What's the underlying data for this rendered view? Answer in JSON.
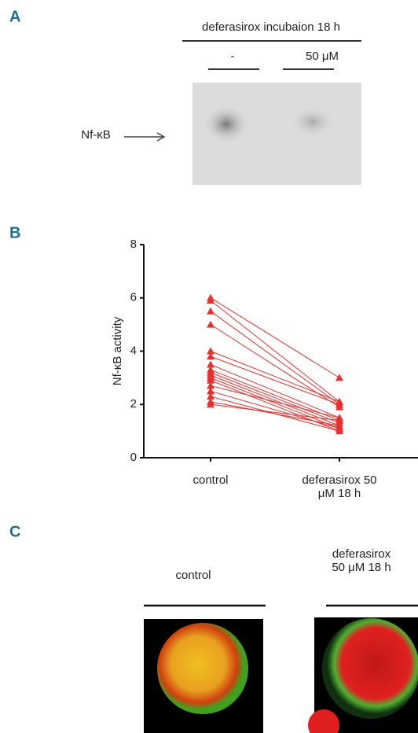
{
  "panel_labels": [
    "A",
    "B",
    "C"
  ],
  "panel_a": {
    "header": "deferasirox incubaion 18 h",
    "lanes": [
      "-",
      "50 μM"
    ],
    "band_label": "Nf-κB"
  },
  "chart_data": {
    "type": "line",
    "ylabel": "Nf-κB activity",
    "categories": [
      "control",
      "deferasirox 50 μM 18 h"
    ],
    "color": "#e8312f",
    "marker": "triangle",
    "ylim": [
      0,
      8
    ],
    "yticks": [
      0,
      2,
      4,
      6,
      8
    ],
    "series": [
      {
        "values": [
          6,
          3
        ]
      },
      {
        "values": [
          5.9,
          2.1
        ]
      },
      {
        "values": [
          5.5,
          2
        ]
      },
      {
        "values": [
          5,
          1.9
        ]
      },
      {
        "values": [
          4,
          2.1
        ]
      },
      {
        "values": [
          3.8,
          2
        ]
      },
      {
        "values": [
          3.5,
          1.5
        ]
      },
      {
        "values": [
          3.3,
          1.4
        ]
      },
      {
        "values": [
          3.2,
          1.3
        ]
      },
      {
        "values": [
          3.1,
          1.2
        ]
      },
      {
        "values": [
          3,
          1.1
        ]
      },
      {
        "values": [
          2.9,
          1
        ]
      },
      {
        "values": [
          2.7,
          1.5
        ]
      },
      {
        "values": [
          2.5,
          1.1
        ]
      },
      {
        "values": [
          2.3,
          1
        ]
      },
      {
        "values": [
          2.1,
          1.2
        ]
      },
      {
        "values": [
          2,
          1.4
        ]
      }
    ]
  },
  "panel_c": {
    "conditions": [
      {
        "lines": [
          "control"
        ]
      },
      {
        "lines": [
          "deferasirox",
          "50 μM 18 h"
        ]
      }
    ]
  }
}
